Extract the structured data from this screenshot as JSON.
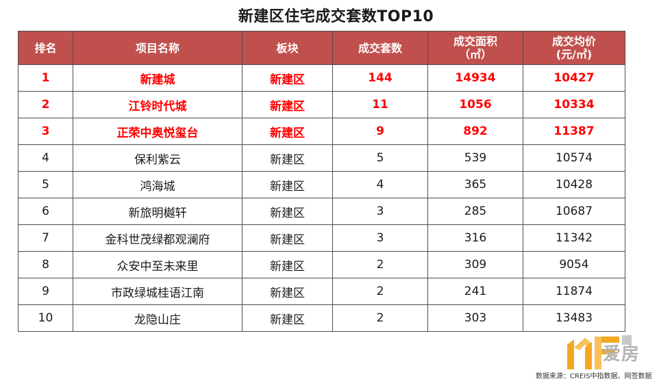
{
  "title": "新建区住宅成交套数TOP10",
  "table": {
    "headers": {
      "rank": "排名",
      "project": "项目名称",
      "block": "板块",
      "units": "成交套数",
      "area_line1": "成交面积",
      "area_line2": "（㎡）",
      "price_line1": "成交均价",
      "price_line2": "(元/㎡)"
    },
    "rows": [
      {
        "rank": "1",
        "project": "新建城",
        "block": "新建区",
        "units": "144",
        "area": "14934",
        "price": "10427"
      },
      {
        "rank": "2",
        "project": "江铃时代城",
        "block": "新建区",
        "units": "11",
        "area": "1056",
        "price": "10334"
      },
      {
        "rank": "3",
        "project": "正荣中奥悦玺台",
        "block": "新建区",
        "units": "9",
        "area": "892",
        "price": "11387"
      },
      {
        "rank": "4",
        "project": "保利紫云",
        "block": "新建区",
        "units": "5",
        "area": "539",
        "price": "10574"
      },
      {
        "rank": "5",
        "project": "鸿海城",
        "block": "新建区",
        "units": "4",
        "area": "365",
        "price": "10428"
      },
      {
        "rank": "6",
        "project": "新旅明樾轩",
        "block": "新建区",
        "units": "3",
        "area": "285",
        "price": "10687"
      },
      {
        "rank": "7",
        "project": "金科世茂绿都观澜府",
        "block": "新建区",
        "units": "3",
        "area": "316",
        "price": "11342"
      },
      {
        "rank": "8",
        "project": "众安中至未来里",
        "block": "新建区",
        "units": "2",
        "area": "309",
        "price": "9054"
      },
      {
        "rank": "9",
        "project": "市政绿城桂语江南",
        "block": "新建区",
        "units": "2",
        "area": "241",
        "price": "11874"
      },
      {
        "rank": "10",
        "project": "龙隐山庄",
        "block": "新建区",
        "units": "2",
        "area": "303",
        "price": "13483"
      }
    ]
  },
  "footer": {
    "source": "数据来源：CREIS中指数据、网签数据",
    "logo_text": "爱房"
  },
  "colors": {
    "header_bg": "#c0504d",
    "highlight_text": "#ff0000",
    "logo_orange": "#f5a623",
    "logo_gray": "#b3b3b3"
  }
}
